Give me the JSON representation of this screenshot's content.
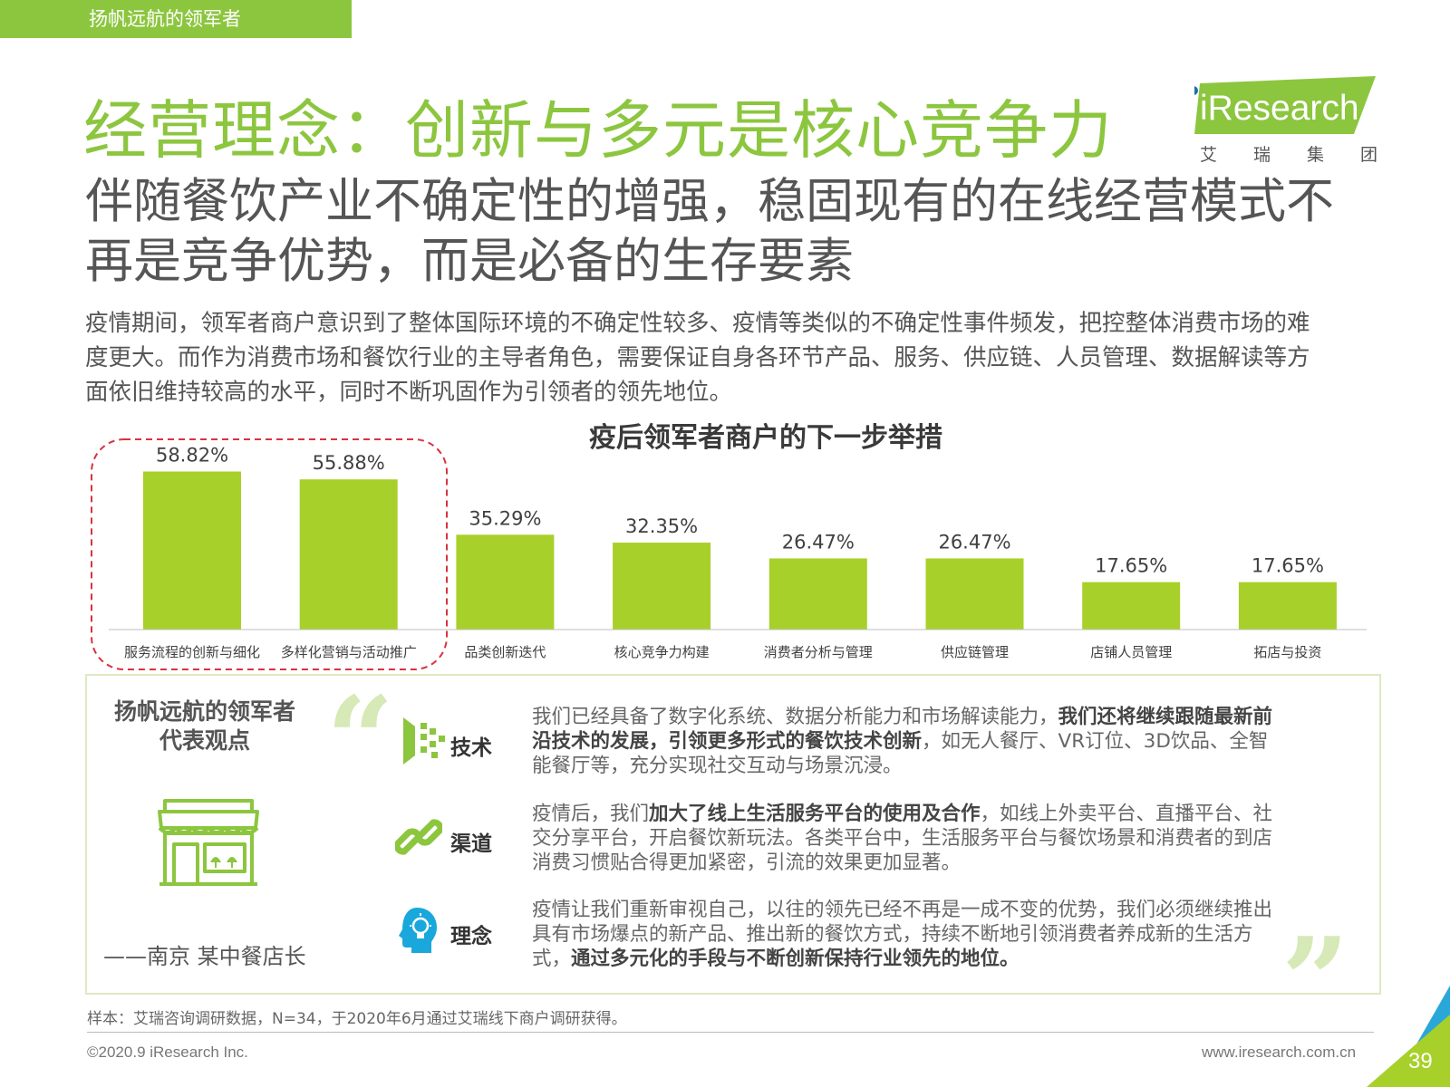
{
  "header": {
    "tag": "扬帆远航的领军者",
    "title": "经营理念：创新与多元是核心竞争力"
  },
  "logo": {
    "text": "iResearch",
    "sub": [
      "艾",
      "瑞",
      "集",
      "团"
    ]
  },
  "subtitle": {
    "line1": "伴随餐饮产业不确定性的增强，稳固现有的在线经营模式不",
    "line2": "再是竞争优势，而是必备的生存要素"
  },
  "paragraph": {
    "line1": "疫情期间，领军者商户意识到了整体国际环境的不确定性较多、疫情等类似的不确定性事件频发，把控整体消费市场的难",
    "line2": "度更大。而作为消费市场和餐饮行业的主导者角色，需要保证自身各环节产品、服务、供应链、人员管理、数据解读等方",
    "line3": "面依旧维持较高的水平，同时不断巩固作为引领者的领先地位。"
  },
  "chart_data": {
    "type": "bar",
    "title": "疫后领军者商户的下一步举措",
    "categories": [
      "服务流程的创新与细化",
      "多样化营销与活动推广",
      "品类创新迭代",
      "核心竞争力构建",
      "消费者分析与管理",
      "供应链管理",
      "店铺人员管理",
      "拓店与投资"
    ],
    "values": [
      58.82,
      55.88,
      35.29,
      32.35,
      26.47,
      26.47,
      17.65,
      17.65
    ],
    "value_labels": [
      "58.82%",
      "55.88%",
      "35.29%",
      "32.35%",
      "26.47%",
      "26.47%",
      "17.65%",
      "17.65%"
    ],
    "unit": "%",
    "highlighted": [
      0,
      1
    ],
    "xlabel": "",
    "ylabel": "",
    "grid": false,
    "color": "#a8d02a"
  },
  "quote": {
    "heading_line1": "扬帆远航的领军者",
    "heading_line2": "代表观点",
    "source": "——南京 某中餐店长",
    "topics": [
      {
        "label": "技术",
        "line1": [
          {
            "t": "我们已经具备了数字化系统、数据分析能力和市场解读能力，",
            "b": false
          },
          {
            "t": "我们还将继续跟随最新前",
            "b": true
          }
        ],
        "line2": [
          {
            "t": "沿技术的发展，引领更多形式的餐饮技术创新",
            "b": true
          },
          {
            "t": "，如无人餐厅、VR订位、3D饮品、全智",
            "b": false
          }
        ],
        "line3": [
          {
            "t": "能餐厅等，充分实现社交互动与场景沉浸。",
            "b": false
          }
        ]
      },
      {
        "label": "渠道",
        "line1": [
          {
            "t": "疫情后，我们",
            "b": false
          },
          {
            "t": "加大了线上生活服务平台的使用及合作",
            "b": true
          },
          {
            "t": "，如线上外卖平台、直播平台、社",
            "b": false
          }
        ],
        "line2": [
          {
            "t": "交分享平台，开启餐饮新玩法。各类平台中，生活服务平台与餐饮场景和消费者的到店",
            "b": false
          }
        ],
        "line3": [
          {
            "t": "消费习惯贴合得更加紧密，引流的效果更加显著。",
            "b": false
          }
        ]
      },
      {
        "label": "理念",
        "line1": [
          {
            "t": "疫情让我们重新审视自己，以往的领先已经不再是一成不变的优势，我们必须继续推出",
            "b": false
          }
        ],
        "line2": [
          {
            "t": "具有市场爆点的新产品、推出新的餐饮方式，持续不断地引领消费者养成新的生活方",
            "b": false
          }
        ],
        "line3": [
          {
            "t": "式，",
            "b": false
          },
          {
            "t": "通过多元化的手段与不断创新保持行业领先的地位。",
            "b": true
          }
        ]
      }
    ]
  },
  "footer": {
    "note": "样本：艾瑞咨询调研数据，N=34，于2020年6月通过艾瑞线下商户调研获得。",
    "copyright": "©2020.9 iResearch Inc.",
    "website": "www.iresearch.com.cn",
    "page": "39"
  },
  "icons": {
    "quote_open": "open-quote-icon",
    "quote_close": "close-quote-icon",
    "store": "storefront-icon",
    "tech": "tech-icon",
    "channel": "chain-link-icon",
    "idea": "head-bulb-icon"
  },
  "colors": {
    "brand_green": "#8cc63f",
    "bar": "#a8d02a",
    "highlight_border": "#d9333f",
    "idea_blue": "#1aa7dc"
  }
}
